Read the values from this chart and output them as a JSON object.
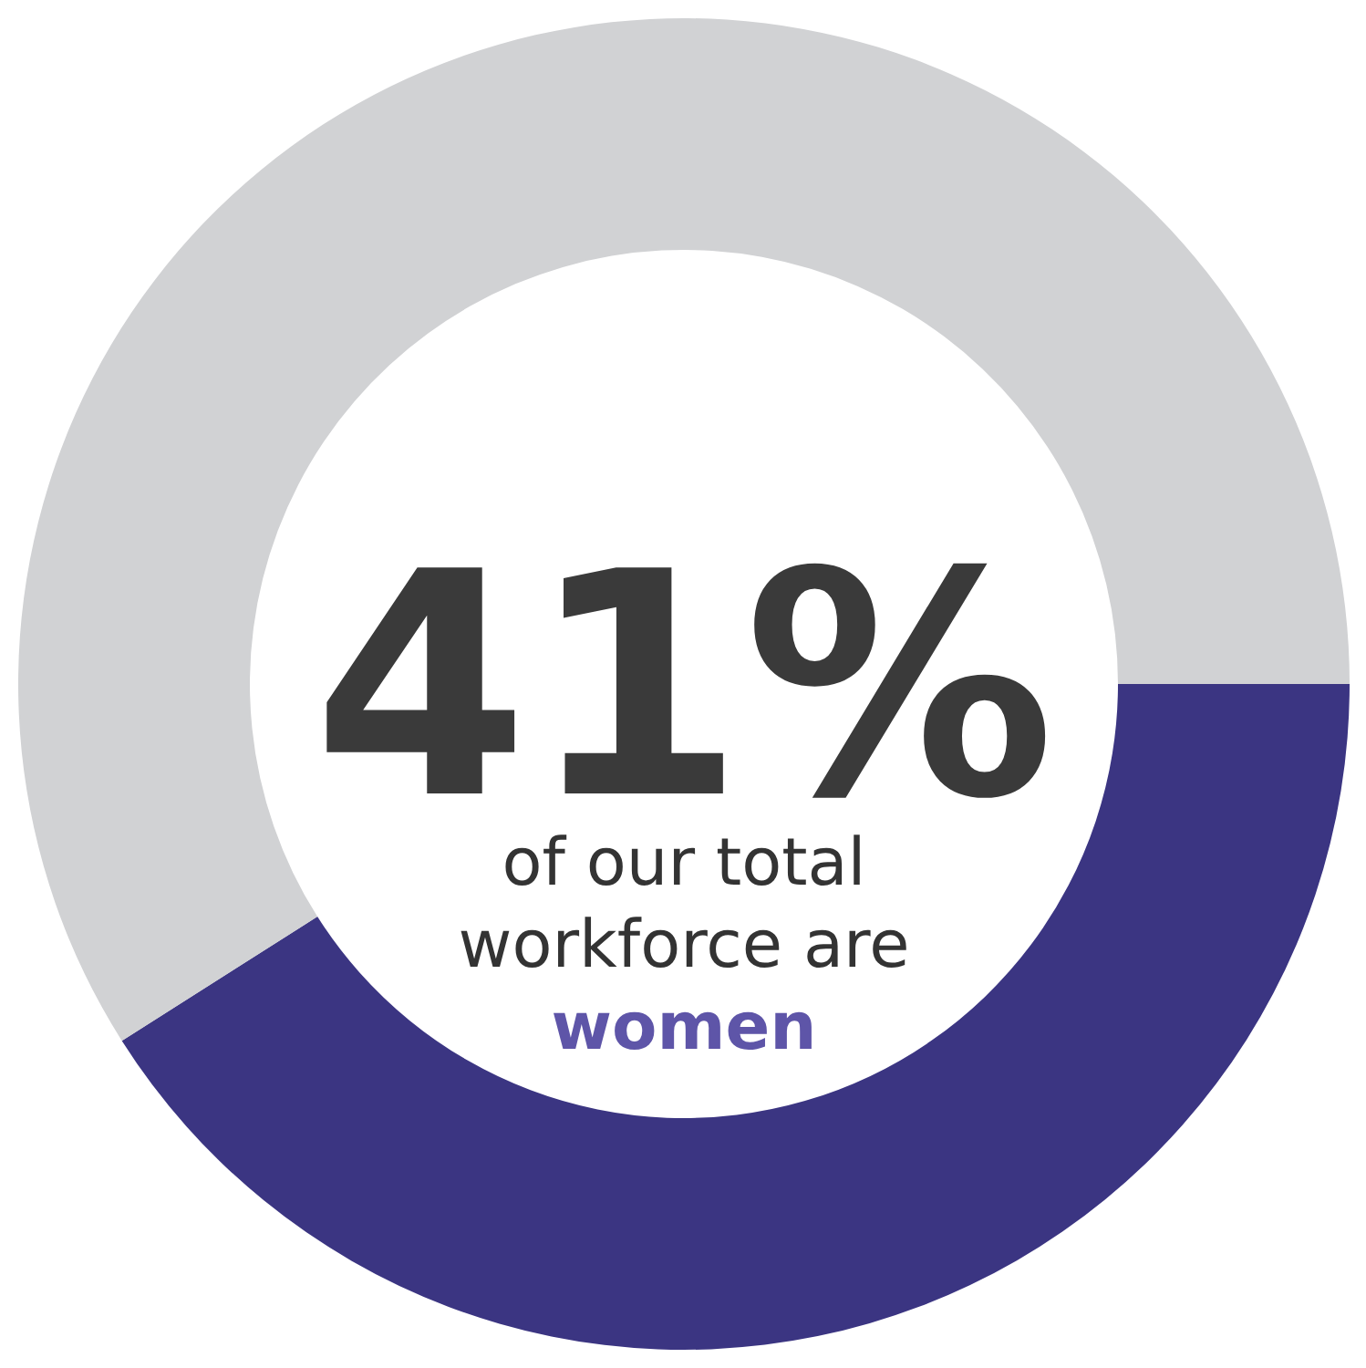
{
  "chart_data": {
    "type": "donut",
    "categories": [
      "women",
      null
    ],
    "values": [
      41,
      59
    ],
    "colors": [
      "#3b3582",
      "#d1d2d4"
    ],
    "value_labels": [
      "41%",
      null
    ],
    "annotations": [
      "of our total",
      "workforce are"
    ],
    "legend": false
  }
}
